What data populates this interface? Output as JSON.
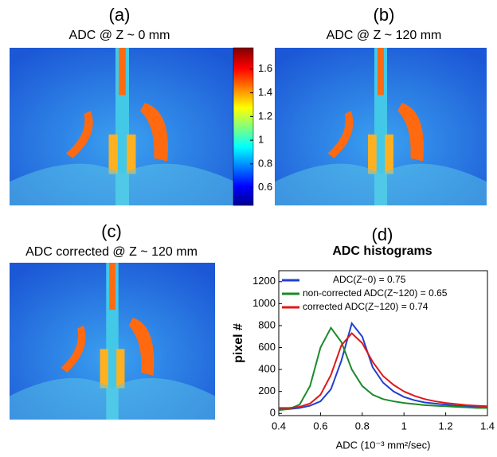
{
  "panels": [
    {
      "label": "(a)",
      "title": "ADC @ Z ~ 0 mm"
    },
    {
      "label": "(b)",
      "title": "ADC @ Z ~ 120 mm"
    },
    {
      "label": "(c)",
      "title": "ADC corrected @ Z ~ 120 mm"
    }
  ],
  "colorbar": {
    "lim": [
      0.45,
      1.78
    ],
    "ticks": [
      0.6,
      0.8,
      1,
      1.2,
      1.4,
      1.6
    ]
  },
  "chart_data": {
    "type": "line",
    "label": "(d)",
    "title": "ADC histograms",
    "x_label": "ADC (10⁻³ mm²/sec)",
    "y_label": "pixel #",
    "x": [
      0.4,
      0.45,
      0.5,
      0.55,
      0.6,
      0.65,
      0.7,
      0.75,
      0.8,
      0.85,
      0.9,
      0.95,
      1.0,
      1.05,
      1.1,
      1.15,
      1.2,
      1.25,
      1.3,
      1.35,
      1.4
    ],
    "series": [
      {
        "name": "ADC(Z~0) = 0.75",
        "color": "#1f3fd0",
        "values": [
          40,
          40,
          50,
          70,
          110,
          220,
          480,
          820,
          700,
          420,
          280,
          200,
          150,
          120,
          100,
          90,
          80,
          70,
          65,
          60,
          55
        ]
      },
      {
        "name": "non-corrected ADC(Z~120) = 0.65",
        "color": "#1a8a2a",
        "values": [
          30,
          40,
          80,
          250,
          600,
          780,
          650,
          400,
          250,
          170,
          130,
          110,
          95,
          85,
          75,
          70,
          65,
          60,
          55,
          50,
          50
        ]
      },
      {
        "name": "corrected  ADC(Z~120) = 0.74",
        "color": "#e01818",
        "values": [
          50,
          50,
          60,
          90,
          170,
          350,
          620,
          730,
          640,
          470,
          340,
          260,
          200,
          160,
          130,
          110,
          95,
          85,
          75,
          70,
          65
        ]
      }
    ],
    "xlim": [
      0.4,
      1.4
    ],
    "xticks": [
      0.4,
      0.6,
      0.8,
      1,
      1.2,
      1.4
    ],
    "ylim": [
      -20,
      1300
    ],
    "yticks": [
      0,
      200,
      400,
      600,
      800,
      1000,
      1200
    ]
  }
}
